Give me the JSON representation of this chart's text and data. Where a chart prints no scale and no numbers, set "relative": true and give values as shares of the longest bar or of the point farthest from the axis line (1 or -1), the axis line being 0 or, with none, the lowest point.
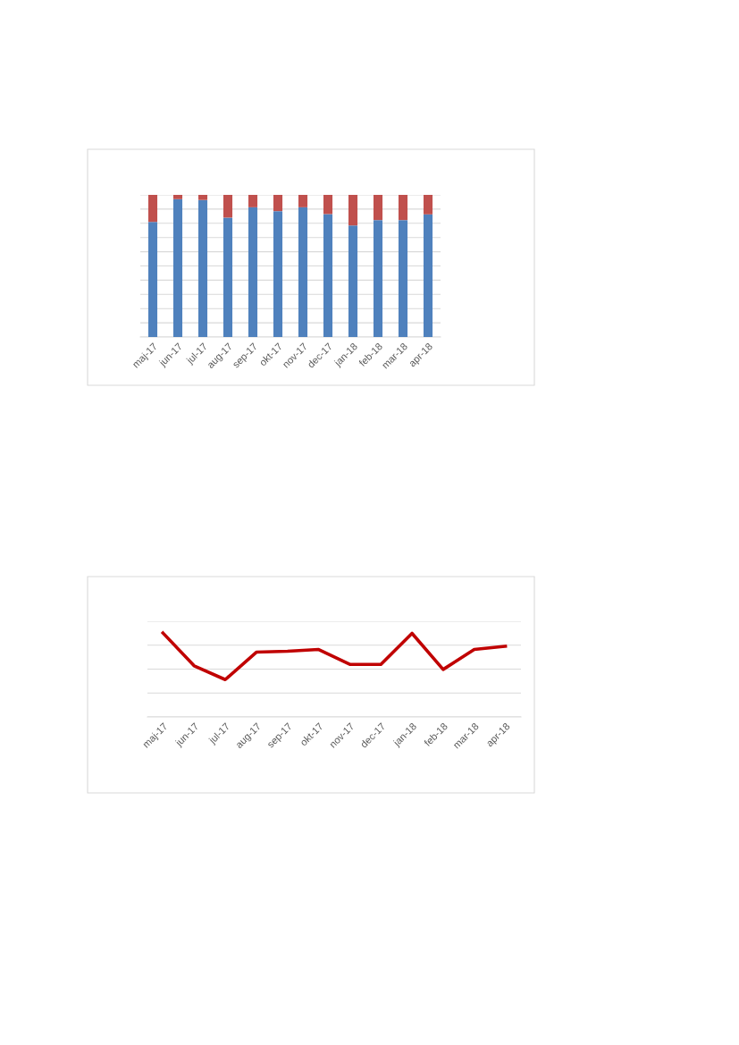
{
  "chart_data": [
    {
      "type": "bar",
      "stacked": true,
      "relative": true,
      "grid": "y",
      "legend": false,
      "categories": [
        "maj-17",
        "jun-17",
        "jul-17",
        "aug-17",
        "sep-17",
        "okt-17",
        "nov-17",
        "dec-17",
        "jan-18",
        "feb-18",
        "mar-18",
        "apr-18"
      ],
      "series": [
        {
          "color": "#4f81bd",
          "values": [
            0.81,
            0.97,
            0.964,
            0.84,
            0.913,
            0.886,
            0.913,
            0.865,
            0.785,
            0.823,
            0.823,
            0.863
          ]
        },
        {
          "color": "#c0504d",
          "values": [
            0.19,
            0.03,
            0.036,
            0.16,
            0.087,
            0.114,
            0.087,
            0.135,
            0.215,
            0.177,
            0.177,
            0.137
          ]
        }
      ]
    },
    {
      "type": "line",
      "relative": true,
      "grid": "y",
      "legend": false,
      "marker": "none",
      "line_style": "solid",
      "categories": [
        "maj-17",
        "jun-17",
        "jul-17",
        "aug-17",
        "sep-17",
        "okt-17",
        "nov-17",
        "dec-17",
        "jan-18",
        "feb-18",
        "mar-18",
        "apr-18"
      ],
      "series": [
        {
          "color": "#c00000",
          "values": [
            1.0,
            0.609,
            0.445,
            0.772,
            0.783,
            0.804,
            0.626,
            0.626,
            0.996,
            0.566,
            0.804,
            0.843
          ]
        }
      ]
    }
  ]
}
